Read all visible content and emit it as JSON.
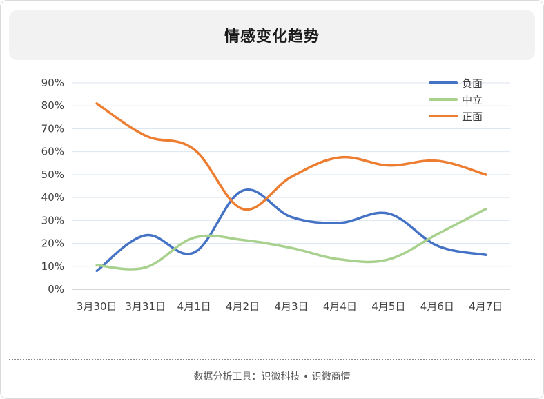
{
  "header": {
    "title": "情感变化趋势"
  },
  "footer": {
    "text": "数据分析工具：识微科技 • 识微商情"
  },
  "chart_data": {
    "type": "line",
    "title": "情感变化趋势",
    "categories": [
      "3月30日",
      "3月31日",
      "4月1日",
      "4月2日",
      "4月3日",
      "4月4日",
      "4月5日",
      "4月6日",
      "4月7日"
    ],
    "y_ticks": [
      "0%",
      "10%",
      "20%",
      "30%",
      "40%",
      "50%",
      "60%",
      "70%",
      "80%",
      "90%"
    ],
    "ylim": [
      0,
      90
    ],
    "grid": true,
    "legend_position": "top-right",
    "series": [
      {
        "name": "负面",
        "color": "#4472c4",
        "values": [
          8,
          23.5,
          16,
          43,
          31.5,
          29,
          33,
          19,
          15
        ]
      },
      {
        "name": "中立",
        "color": "#a9d18e",
        "values": [
          10.5,
          9.5,
          22.5,
          21.5,
          18,
          13,
          13,
          24,
          35
        ]
      },
      {
        "name": "正面",
        "color": "#ed7d31",
        "values": [
          81,
          67,
          61,
          35,
          49,
          57.5,
          54,
          56,
          50
        ]
      }
    ]
  }
}
